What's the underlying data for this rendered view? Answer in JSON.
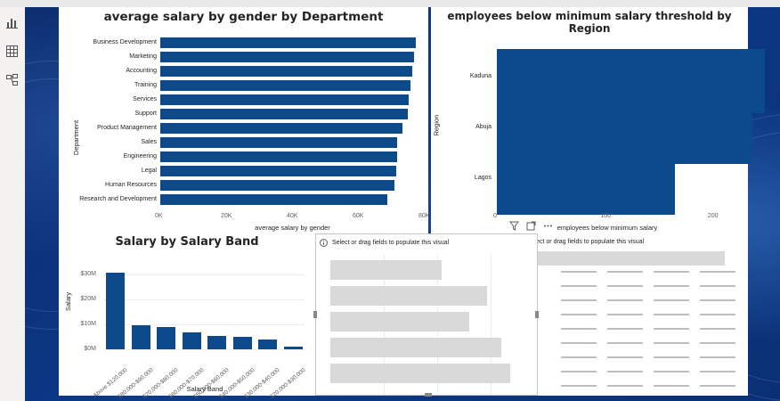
{
  "left_rail": {
    "icons": [
      "report-view-icon",
      "table-view-icon",
      "model-view-icon"
    ]
  },
  "visual_department": {
    "title": "average salary by gender by Department",
    "chart_data": {
      "type": "bar",
      "orientation": "horizontal",
      "title": "average salary by gender by Department",
      "xlabel": "average salary by gender",
      "ylabel": "Department",
      "categories": [
        "Business Development",
        "Marketing",
        "Accounting",
        "Training",
        "Services",
        "Support",
        "Product Management",
        "Sales",
        "Engineering",
        "Legal",
        "Human Resources",
        "Research and Development"
      ],
      "values": [
        77500,
        77000,
        76500,
        76000,
        75500,
        75000,
        73500,
        72000,
        72000,
        71500,
        71000,
        69000
      ],
      "xlim": [
        0,
        80000
      ],
      "xticks": [
        "0K",
        "20K",
        "40K",
        "60K",
        "80K"
      ],
      "color": "#0d4a8c"
    }
  },
  "visual_region": {
    "title": "employees below minimum salary threshold by Region",
    "chart_data": {
      "type": "bar",
      "orientation": "horizontal",
      "title": "employees below minimum salary threshold by Region",
      "xlabel": "employees below minimum salary",
      "ylabel": "Region",
      "categories": [
        "Kaduna",
        "Abuja",
        "Lagos"
      ],
      "values": [
        250,
        238,
        166
      ],
      "xlim": [
        0,
        250
      ],
      "xticks": [
        "0",
        "100",
        "200"
      ],
      "tick_values": [
        0,
        100,
        200
      ],
      "color": "#0d4a8c"
    }
  },
  "visual_band": {
    "title": "Salary by Salary Band",
    "chart_data": {
      "type": "bar",
      "orientation": "vertical",
      "title": "Salary by Salary Band",
      "xlabel": "Salary Band",
      "ylabel": "Salary",
      "categories": [
        "Above $120,000",
        "$80,000-$90,000",
        "$70,000-$80,000",
        "$60,000-$70,000",
        "$50,000-$60,000",
        "$40,000-$50,000",
        "$30,000-$40,000",
        "$20,000-$30,000"
      ],
      "values": [
        30.5,
        9.5,
        9.0,
        6.8,
        5.5,
        5.0,
        3.8,
        1.0
      ],
      "unit": "$M",
      "ylim": [
        0,
        32
      ],
      "yticks": [
        "$0M",
        "$10M",
        "$20M",
        "$30M"
      ],
      "ytick_values": [
        0,
        10,
        20,
        30
      ],
      "color": "#0d4a8c"
    }
  },
  "placeholder_bar": {
    "message": "Select or drag fields to populate this visual",
    "bar_levels": [
      0.62,
      0.87,
      0.77,
      0.95,
      1.0
    ]
  },
  "placeholder_table": {
    "message": "Select or drag fields to populate this visual"
  }
}
